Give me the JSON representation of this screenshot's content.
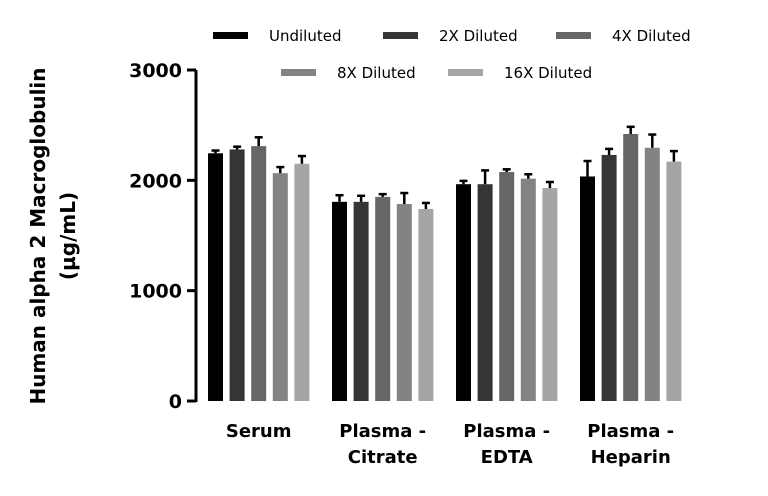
{
  "chart_data": {
    "type": "bar",
    "title": "",
    "xlabel": "",
    "ylabel": [
      "Human alpha 2 Macroglobulin",
      "(µg/mL)"
    ],
    "ylim": [
      0,
      3000
    ],
    "yticks": [
      "0",
      "1000",
      "2000",
      "3000"
    ],
    "ytick_values": [
      0,
      1000,
      2000,
      3000
    ],
    "grid": false,
    "legend_placement": "top",
    "categories": [
      [
        "Serum"
      ],
      [
        "Plasma -",
        "Citrate"
      ],
      [
        "Plasma -",
        "EDTA"
      ],
      [
        "Plasma -",
        "Heparin"
      ]
    ],
    "series": [
      {
        "name": "Undiluted",
        "color": "#000000",
        "values": [
          2245,
          1805,
          1965,
          2035
        ],
        "errors": [
          25,
          60,
          30,
          140
        ]
      },
      {
        "name": "2X Diluted",
        "color": "#353535",
        "values": [
          2280,
          1805,
          1965,
          2230
        ],
        "errors": [
          25,
          55,
          125,
          55
        ]
      },
      {
        "name": "4X Diluted",
        "color": "#666666",
        "values": [
          2310,
          1850,
          2075,
          2420
        ],
        "errors": [
          80,
          25,
          25,
          65
        ]
      },
      {
        "name": "8X Diluted",
        "color": "#838383",
        "values": [
          2065,
          1785,
          2015,
          2295
        ],
        "errors": [
          55,
          100,
          40,
          120
        ]
      },
      {
        "name": "16X Diluted",
        "color": "#a5a5a5",
        "values": [
          2150,
          1740,
          1930,
          2170
        ],
        "errors": [
          70,
          55,
          55,
          95
        ]
      }
    ]
  }
}
